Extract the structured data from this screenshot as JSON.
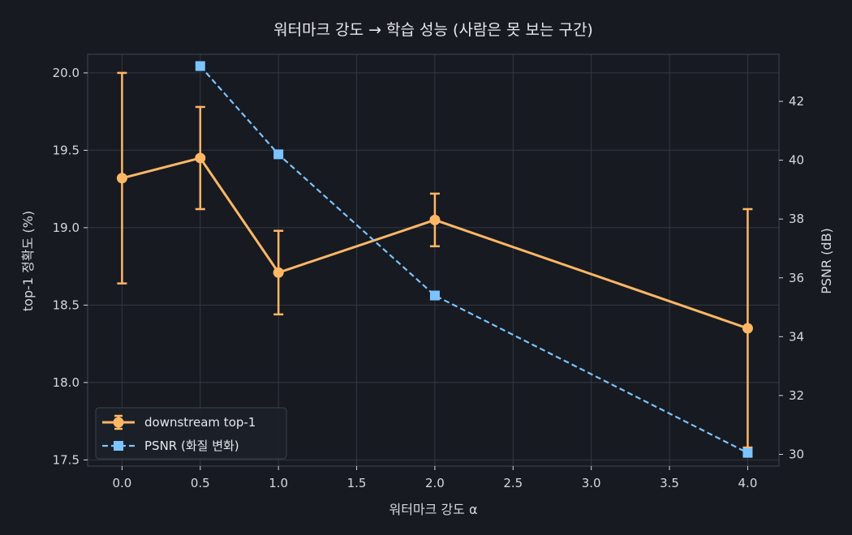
{
  "chart_data": {
    "type": "line",
    "title": "워터마크 강도 → 학습 성능 (사람은 못 보는 구간)",
    "xlabel": "워터마크 강도 α",
    "ylabel_left": "top-1 정확도 (%)",
    "ylabel_right": "PSNR (dB)",
    "xlim": [
      -0.22,
      4.2
    ],
    "ylim_left": [
      17.46,
      20.12
    ],
    "ylim_right": [
      29.6,
      43.6
    ],
    "x_ticks": [
      0.0,
      0.5,
      1.0,
      1.5,
      2.0,
      2.5,
      3.0,
      3.5,
      4.0
    ],
    "x_tick_labels": [
      "0.0",
      "0.5",
      "1.0",
      "1.5",
      "2.0",
      "2.5",
      "3.0",
      "3.5",
      "4.0"
    ],
    "y_left_ticks": [
      17.5,
      18.0,
      18.5,
      19.0,
      19.5,
      20.0
    ],
    "y_left_tick_labels": [
      "17.5",
      "18.0",
      "18.5",
      "19.0",
      "19.5",
      "20.0"
    ],
    "y_right_ticks": [
      30,
      32,
      34,
      36,
      38,
      40,
      42
    ],
    "y_right_tick_labels": [
      "30",
      "32",
      "34",
      "36",
      "38",
      "40",
      "42"
    ],
    "grid": true,
    "legend_position": "lower-left",
    "series": [
      {
        "name": "downstream top-1",
        "axis": "left",
        "style": "solid",
        "marker": "circle",
        "color": "#ffb766",
        "x": [
          0.0,
          0.5,
          1.0,
          2.0,
          4.0
        ],
        "y": [
          19.32,
          19.45,
          18.71,
          19.05,
          18.35
        ],
        "err_low": [
          18.64,
          19.12,
          18.44,
          18.88,
          17.58
        ],
        "err_high": [
          20.0,
          19.78,
          18.98,
          19.22,
          19.12
        ]
      },
      {
        "name": "PSNR (화질 변화)",
        "axis": "right",
        "style": "dashed",
        "marker": "square",
        "color": "#7cc4ff",
        "x": [
          0.5,
          1.0,
          2.0,
          4.0
        ],
        "y": [
          43.2,
          40.2,
          35.4,
          30.05
        ]
      }
    ],
    "colors": {
      "background": "#171a21",
      "grid": "#333843",
      "spine": "#3a3f4a",
      "text": "#d5d8de"
    }
  }
}
